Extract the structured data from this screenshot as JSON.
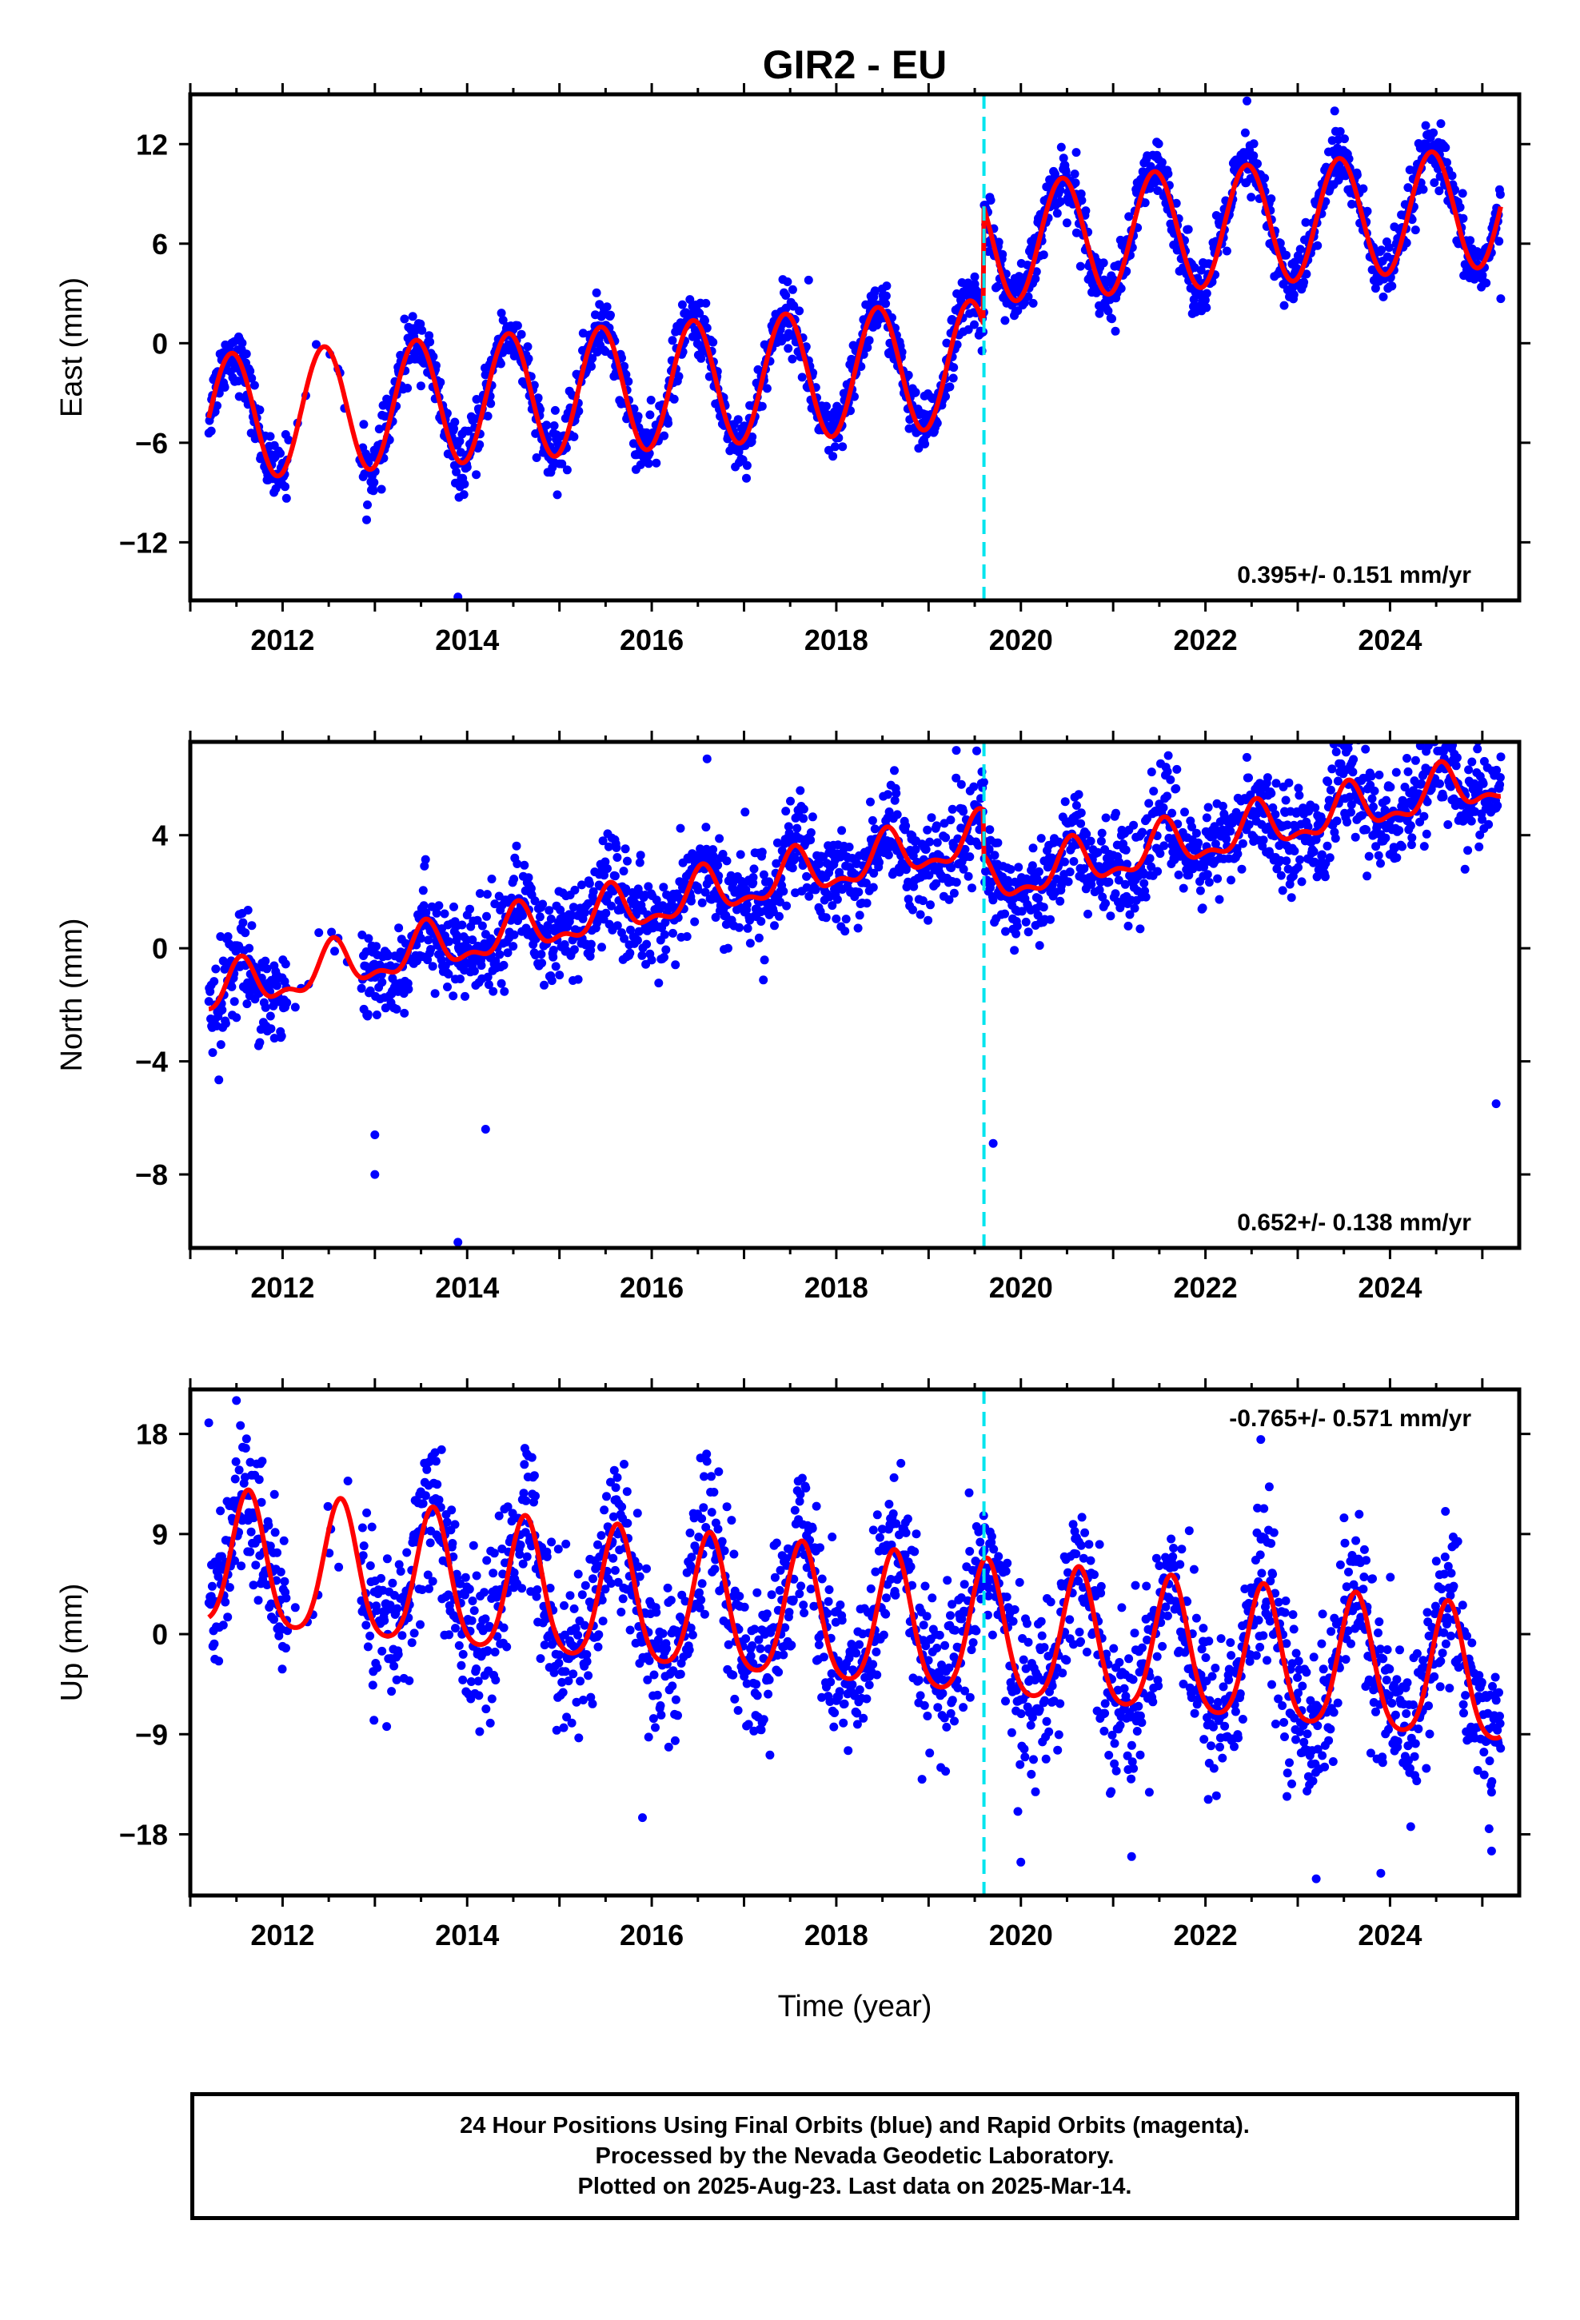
{
  "title": "GIR2 - EU",
  "xlabel": "Time (year)",
  "footer": {
    "line1": "24 Hour Positions Using Final Orbits (blue) and Rapid Orbits (magenta).",
    "line2": "Processed by the Nevada Geodetic Laboratory.",
    "line3": "Plotted on 2025-Aug-23. Last data on 2025-Mar-14."
  },
  "colors": {
    "points": "#0000ff",
    "model": "#ff0000",
    "break_line": "#00e5ee",
    "frame": "#000000"
  },
  "chart_data": [
    {
      "type": "scatter",
      "name": "East",
      "ylabel": "East (mm)",
      "xlim": [
        2011.0,
        2025.4
      ],
      "ylim": [
        -15.5,
        15
      ],
      "yticks": [
        -12,
        -6,
        0,
        6,
        12
      ],
      "xticks": [
        2012,
        2014,
        2016,
        2018,
        2020,
        2022,
        2024
      ],
      "rate_label": "0.395+/- 0.151 mm/yr",
      "rate_position": "bottom-right",
      "break_epoch": 2019.6,
      "data_start": 2011.2,
      "data_end": 2025.2,
      "model": {
        "segments": [
          {
            "t_start": 2011.2,
            "t_end": 2019.6,
            "offset": -4.5,
            "rate": 0.395,
            "amplitude": 3.8,
            "phase_peak": 0.45
          },
          {
            "t_start": 2019.6,
            "t_end": 2025.2,
            "offset": 2.7,
            "rate": 0.395,
            "amplitude": 3.6,
            "phase_peak": 0.45
          }
        ]
      },
      "scatter_sd": 0.9,
      "outliers": [
        [
          2013.9,
          -15.3
        ],
        [
          2022.45,
          14.6
        ],
        [
          2023.4,
          14.0
        ],
        [
          2020.6,
          11.5
        ],
        [
          2019.5,
          4.0
        ],
        [
          2017.7,
          3.8
        ]
      ]
    },
    {
      "type": "scatter",
      "name": "North",
      "ylabel": "North (mm)",
      "xlim": [
        2011.0,
        2025.4
      ],
      "ylim": [
        -10.6,
        7.3
      ],
      "yticks": [
        -8,
        -4,
        0,
        4
      ],
      "xticks": [
        2012,
        2014,
        2016,
        2018,
        2020,
        2022,
        2024
      ],
      "rate_label": "0.652+/- 0.138 mm/yr",
      "rate_position": "bottom-right",
      "break_epoch": 2019.6,
      "data_start": 2011.2,
      "data_end": 2025.2,
      "model": {
        "segments": [
          {
            "t_start": 2011.2,
            "t_end": 2019.6,
            "offset": -1.6,
            "rate": 0.652,
            "amplitude": 0.75,
            "phase_peak": 0.55,
            "semiannual": 0.35
          },
          {
            "t_start": 2019.6,
            "t_end": 2025.2,
            "offset": -3.2,
            "rate": 0.652,
            "amplitude": 0.75,
            "phase_peak": 0.55,
            "semiannual": 0.35
          }
        ]
      },
      "scatter_sd": 0.85,
      "outliers": [
        [
          2013.0,
          -6.6
        ],
        [
          2013.0,
          -8.0
        ],
        [
          2013.9,
          -10.4
        ],
        [
          2014.2,
          -6.4
        ],
        [
          2016.6,
          6.7
        ],
        [
          2019.3,
          7.0
        ],
        [
          2025.15,
          -5.5
        ],
        [
          2019.7,
          -6.9
        ]
      ]
    },
    {
      "type": "scatter",
      "name": "Up",
      "ylabel": "Up (mm)",
      "xlim": [
        2011.0,
        2025.4
      ],
      "ylim": [
        -23.5,
        22
      ],
      "yticks": [
        -18,
        -9,
        0,
        9,
        18
      ],
      "xticks": [
        2012,
        2014,
        2016,
        2018,
        2020,
        2022,
        2024
      ],
      "rate_label": "-0.765+/- 0.571 mm/yr",
      "rate_position": "top-right",
      "break_epoch": 2019.6,
      "data_start": 2011.2,
      "data_end": 2025.2,
      "model": {
        "segments": [
          {
            "t_start": 2011.2,
            "t_end": 2025.2,
            "offset": 6.3,
            "rate": -0.765,
            "amplitude": 6.0,
            "phase_peak": 0.63,
            "semiannual": 1.0
          }
        ]
      },
      "scatter_sd": 3.6,
      "outliers": [
        [
          2011.2,
          19.0
        ],
        [
          2011.5,
          21.0
        ],
        [
          2015.9,
          -16.5
        ],
        [
          2020.0,
          -20.5
        ],
        [
          2021.2,
          -20.0
        ],
        [
          2023.2,
          -22.0
        ],
        [
          2023.9,
          -21.5
        ],
        [
          2025.1,
          -19.5
        ],
        [
          2022.6,
          17.5
        ]
      ]
    }
  ]
}
